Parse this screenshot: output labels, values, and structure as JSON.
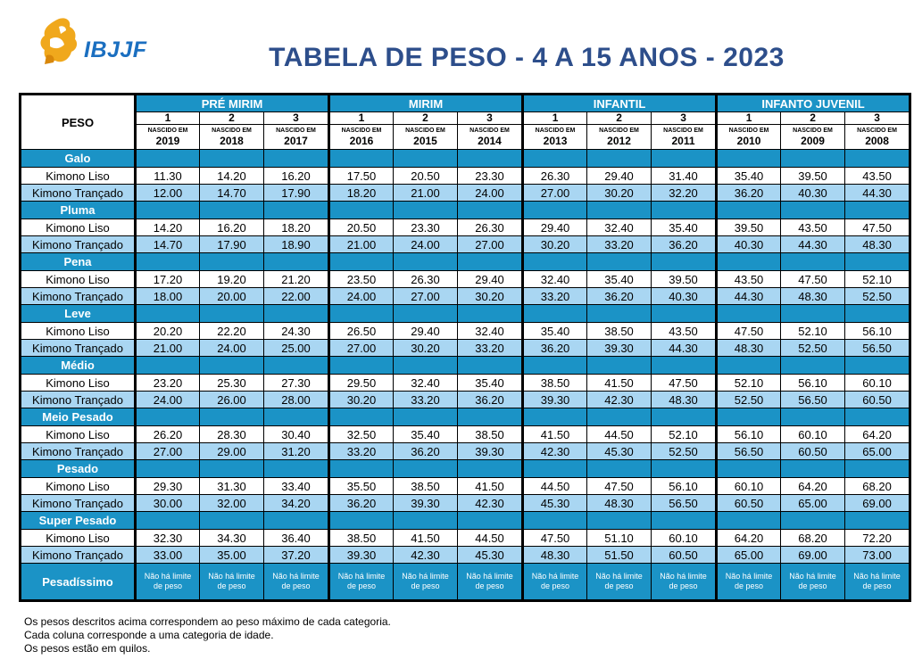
{
  "header": {
    "logo_text": "IBJJF",
    "title": "TABELA DE PESO - 4 A 15 ANOS - 2023"
  },
  "table": {
    "peso_label": "PESO",
    "born_label": "NASCIDO EM",
    "groups": [
      {
        "name": "PRÉ MIRIM",
        "cols": [
          {
            "num": "1",
            "year": "2019"
          },
          {
            "num": "2",
            "year": "2018"
          },
          {
            "num": "3",
            "year": "2017"
          }
        ]
      },
      {
        "name": "MIRIM",
        "cols": [
          {
            "num": "1",
            "year": "2016"
          },
          {
            "num": "2",
            "year": "2015"
          },
          {
            "num": "3",
            "year": "2014"
          }
        ]
      },
      {
        "name": "INFANTIL",
        "cols": [
          {
            "num": "1",
            "year": "2013"
          },
          {
            "num": "2",
            "year": "2012"
          },
          {
            "num": "3",
            "year": "2011"
          }
        ]
      },
      {
        "name": "INFANTO JUVENIL",
        "cols": [
          {
            "num": "1",
            "year": "2010"
          },
          {
            "num": "2",
            "year": "2009"
          },
          {
            "num": "3",
            "year": "2008"
          }
        ]
      }
    ],
    "liso_label": "Kimono Liso",
    "trancado_label": "Kimono Trançado",
    "categories": [
      {
        "name": "Galo",
        "liso": [
          "11.30",
          "14.20",
          "16.20",
          "17.50",
          "20.50",
          "23.30",
          "26.30",
          "29.40",
          "31.40",
          "35.40",
          "39.50",
          "43.50"
        ],
        "trancado": [
          "12.00",
          "14.70",
          "17.90",
          "18.20",
          "21.00",
          "24.00",
          "27.00",
          "30.20",
          "32.20",
          "36.20",
          "40.30",
          "44.30"
        ]
      },
      {
        "name": "Pluma",
        "liso": [
          "14.20",
          "16.20",
          "18.20",
          "20.50",
          "23.30",
          "26.30",
          "29.40",
          "32.40",
          "35.40",
          "39.50",
          "43.50",
          "47.50"
        ],
        "trancado": [
          "14.70",
          "17.90",
          "18.90",
          "21.00",
          "24.00",
          "27.00",
          "30.20",
          "33.20",
          "36.20",
          "40.30",
          "44.30",
          "48.30"
        ]
      },
      {
        "name": "Pena",
        "liso": [
          "17.20",
          "19.20",
          "21.20",
          "23.50",
          "26.30",
          "29.40",
          "32.40",
          "35.40",
          "39.50",
          "43.50",
          "47.50",
          "52.10"
        ],
        "trancado": [
          "18.00",
          "20.00",
          "22.00",
          "24.00",
          "27.00",
          "30.20",
          "33.20",
          "36.20",
          "40.30",
          "44.30",
          "48.30",
          "52.50"
        ]
      },
      {
        "name": "Leve",
        "liso": [
          "20.20",
          "22.20",
          "24.30",
          "26.50",
          "29.40",
          "32.40",
          "35.40",
          "38.50",
          "43.50",
          "47.50",
          "52.10",
          "56.10"
        ],
        "trancado": [
          "21.00",
          "24.00",
          "25.00",
          "27.00",
          "30.20",
          "33.20",
          "36.20",
          "39.30",
          "44.30",
          "48.30",
          "52.50",
          "56.50"
        ]
      },
      {
        "name": "Médio",
        "liso": [
          "23.20",
          "25.30",
          "27.30",
          "29.50",
          "32.40",
          "35.40",
          "38.50",
          "41.50",
          "47.50",
          "52.10",
          "56.10",
          "60.10"
        ],
        "trancado": [
          "24.00",
          "26.00",
          "28.00",
          "30.20",
          "33.20",
          "36.20",
          "39.30",
          "42.30",
          "48.30",
          "52.50",
          "56.50",
          "60.50"
        ]
      },
      {
        "name": "Meio Pesado",
        "liso": [
          "26.20",
          "28.30",
          "30.40",
          "32.50",
          "35.40",
          "38.50",
          "41.50",
          "44.50",
          "52.10",
          "56.10",
          "60.10",
          "64.20"
        ],
        "trancado": [
          "27.00",
          "29.00",
          "31.20",
          "33.20",
          "36.20",
          "39.30",
          "42.30",
          "45.30",
          "52.50",
          "56.50",
          "60.50",
          "65.00"
        ]
      },
      {
        "name": "Pesado",
        "liso": [
          "29.30",
          "31.30",
          "33.40",
          "35.50",
          "38.50",
          "41.50",
          "44.50",
          "47.50",
          "56.10",
          "60.10",
          "64.20",
          "68.20"
        ],
        "trancado": [
          "30.00",
          "32.00",
          "34.20",
          "36.20",
          "39.30",
          "42.30",
          "45.30",
          "48.30",
          "56.50",
          "60.50",
          "65.00",
          "69.00"
        ]
      },
      {
        "name": "Super Pesado",
        "liso": [
          "32.30",
          "34.30",
          "36.40",
          "38.50",
          "41.50",
          "44.50",
          "47.50",
          "51.10",
          "60.10",
          "64.20",
          "68.20",
          "72.20"
        ],
        "trancado": [
          "33.00",
          "35.00",
          "37.20",
          "39.30",
          "42.30",
          "45.30",
          "48.30",
          "51.50",
          "60.50",
          "65.00",
          "69.00",
          "73.00"
        ]
      }
    ],
    "pesadissimo": {
      "name": "Pesadíssimo",
      "line1": "Não há limite",
      "line2": "de peso"
    }
  },
  "notes": [
    "Os pesos descritos acima correspondem ao peso máximo de cada categoria.",
    "Cada coluna corresponde a uma categoria de idade.",
    "Os pesos estão em quilos."
  ],
  "colors": {
    "title": "#2d4e8b",
    "header_blue": "#1b93c6",
    "light_row": "#a9d6f2",
    "logo_gold": "#f0a81c",
    "logo_blue": "#1b6fc0"
  },
  "icons": {
    "logo": "ibjjf-fighter-logo"
  }
}
